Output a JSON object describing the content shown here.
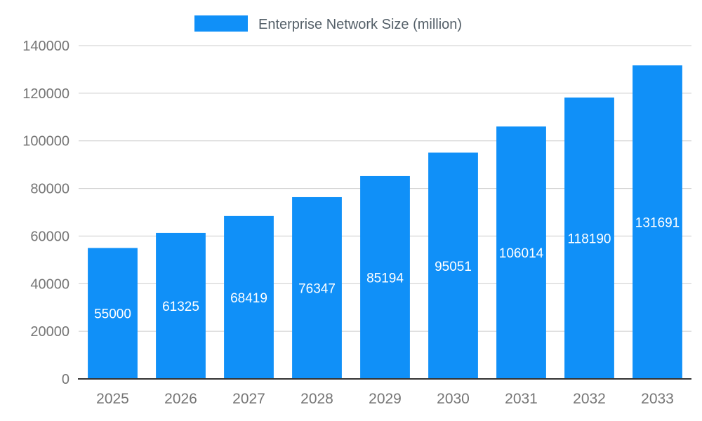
{
  "chart_data": {
    "type": "bar",
    "title": "Enterprise Network Size (million)",
    "categories": [
      "2025",
      "2026",
      "2027",
      "2028",
      "2029",
      "2030",
      "2031",
      "2032",
      "2033"
    ],
    "values": [
      55000,
      61325,
      68419,
      76347,
      85194,
      95051,
      106014,
      118190,
      131691
    ],
    "xlabel": "",
    "ylabel": "",
    "ylim": [
      0,
      140000
    ],
    "y_ticks": [
      0,
      20000,
      40000,
      60000,
      80000,
      100000,
      120000,
      140000
    ],
    "grid": true,
    "legend_position": "top",
    "bar_color": "#1090f8",
    "value_label_color": "#ffffff",
    "axis_text_color": "#757575",
    "grid_color": "#cccccc",
    "baseline_color": "#333333"
  }
}
